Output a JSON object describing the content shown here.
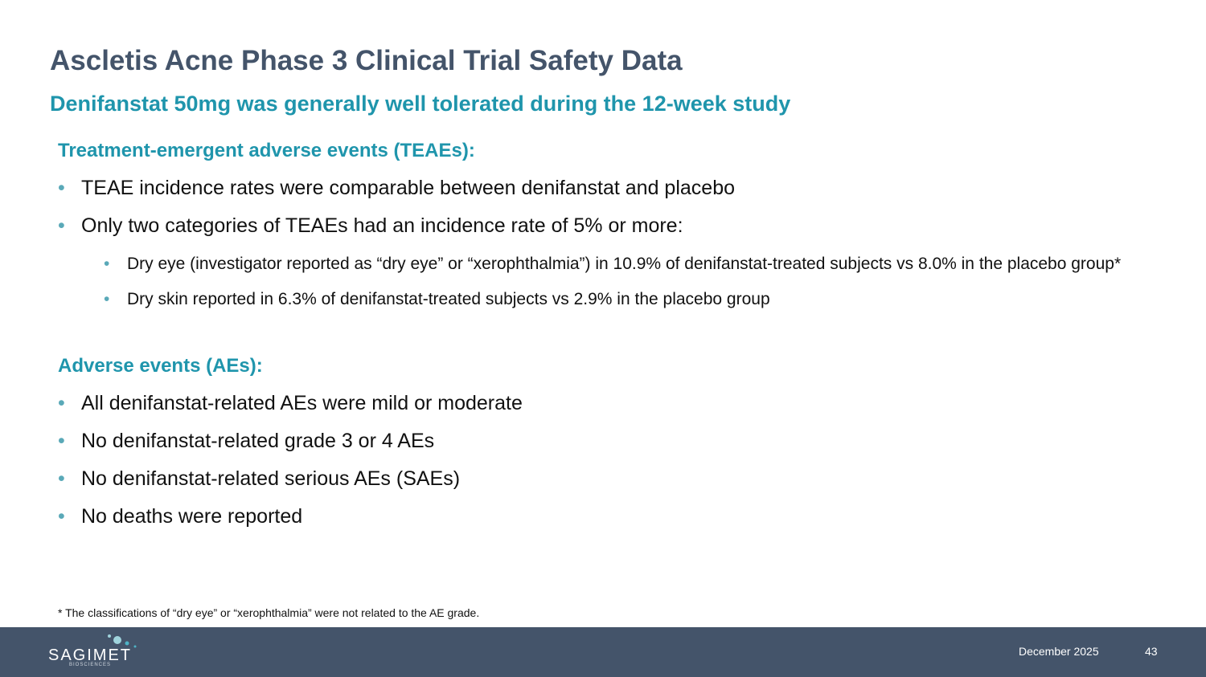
{
  "header": {
    "title": "Ascletis Acne Phase 3 Clinical Trial Safety Data",
    "subtitle": "Denifanstat 50mg was generally well tolerated during the 12-week study"
  },
  "sections": [
    {
      "heading": "Treatment-emergent adverse events (TEAEs):",
      "bullets": [
        {
          "text": "TEAE incidence rates were comparable between denifanstat and placebo",
          "sub": []
        },
        {
          "text": "Only two categories of TEAEs had an incidence rate of 5% or more:",
          "sub": [
            "Dry eye (investigator reported as “dry eye” or “xerophthalmia”) in 10.9% of denifanstat-treated subjects vs 8.0% in the placebo group*",
            "Dry skin reported in 6.3% of denifanstat-treated subjects vs 2.9% in the placebo group"
          ]
        }
      ]
    },
    {
      "heading": "Adverse events (AEs):",
      "bullets": [
        {
          "text": "All denifanstat-related AEs were mild or moderate",
          "sub": []
        },
        {
          "text": "No denifanstat-related grade 3 or 4 AEs",
          "sub": []
        },
        {
          "text": "No denifanstat-related serious AEs (SAEs)",
          "sub": []
        },
        {
          "text": "No deaths were reported",
          "sub": []
        }
      ]
    }
  ],
  "footnote": "* The classifications of “dry eye” or “xerophthalmia” were not related to the AE grade.",
  "footer": {
    "logo": "SAGIMET",
    "logo_sub": "BIOSCIENCES",
    "date": "December 2025",
    "page": "43"
  }
}
